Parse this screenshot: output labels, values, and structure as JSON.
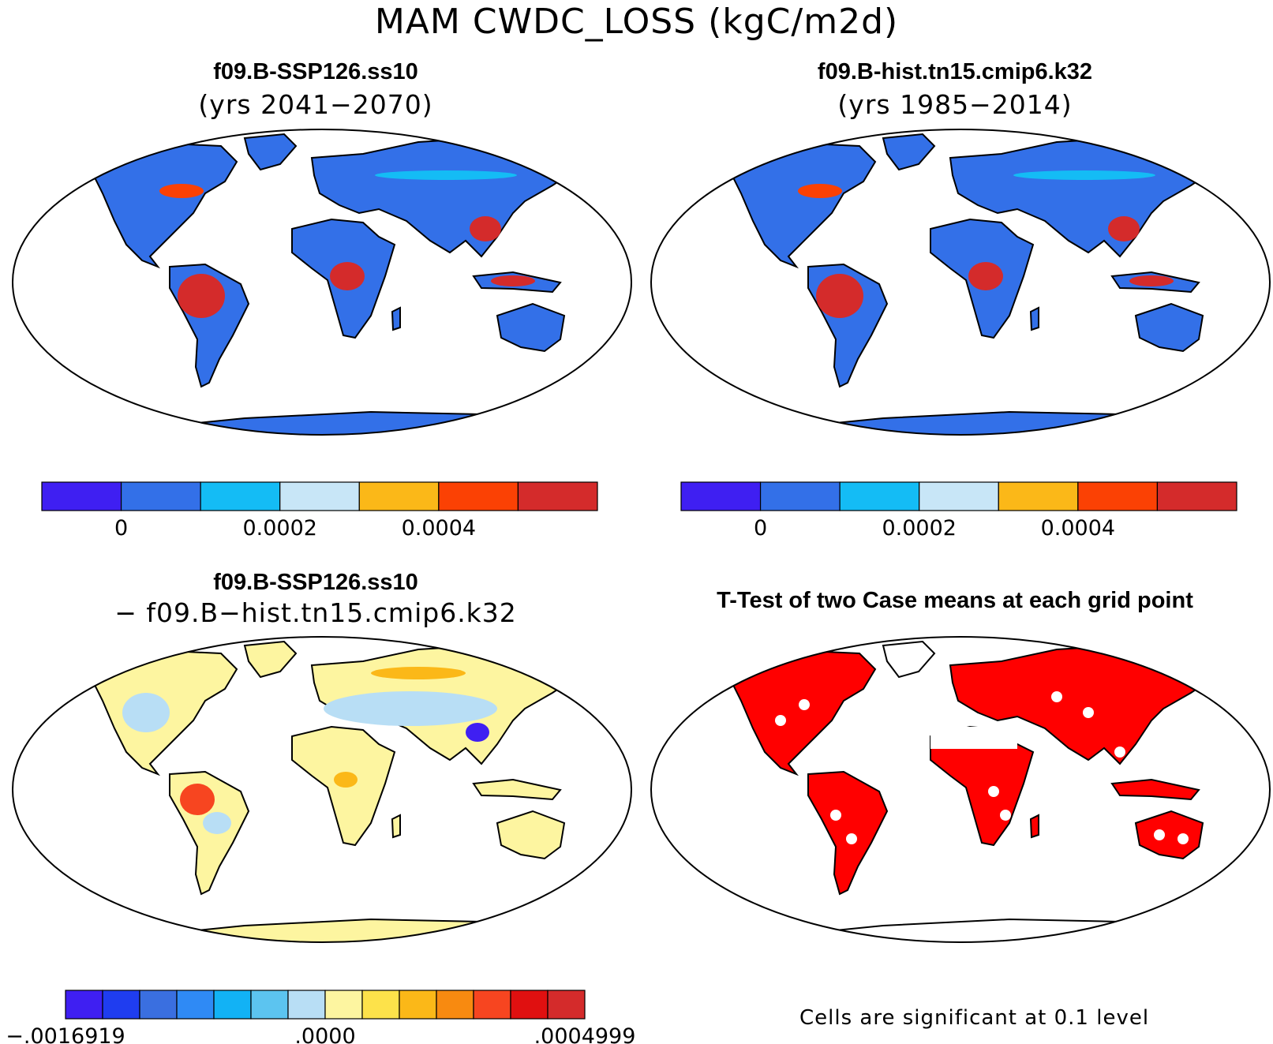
{
  "title": "MAM CWDC_LOSS (kgC/m2d)",
  "panels": [
    {
      "title": "f09.B-SSP126.ss10",
      "subtitle": "(yrs 2041−2070)",
      "colorbar": {
        "colors": [
          "#3f1ff2",
          "#3370e8",
          "#14bcf5",
          "#c8e6f7",
          "#fbb818",
          "#fb4104",
          "#d42b2b"
        ],
        "labels": [
          {
            "text": "0",
            "after_box": 1
          },
          {
            "text": "0.0002",
            "after_box": 3
          },
          {
            "text": "0.0004",
            "after_box": 5
          }
        ]
      }
    },
    {
      "title": "f09.B-hist.tn15.cmip6.k32",
      "subtitle": "(yrs 1985−2014)",
      "colorbar": {
        "colors": [
          "#3f1ff2",
          "#3370e8",
          "#14bcf5",
          "#c8e6f7",
          "#fbb818",
          "#fb4104",
          "#d42b2b"
        ],
        "labels": [
          {
            "text": "0",
            "after_box": 1
          },
          {
            "text": "0.0002",
            "after_box": 3
          },
          {
            "text": "0.0004",
            "after_box": 5
          }
        ]
      }
    },
    {
      "title": "f09.B-SSP126.ss10",
      "subtitle": "− f09.B−hist.tn15.cmip6.k32",
      "colorbar": {
        "colors": [
          "#3f1ff2",
          "#1f3df0",
          "#3a6fe0",
          "#2f8af5",
          "#12b2f5",
          "#5cc4f0",
          "#b8def5",
          "#fdf5a0",
          "#fde24a",
          "#fbb818",
          "#f88a10",
          "#f74520",
          "#e01010",
          "#d42b2b"
        ],
        "labels": [
          {
            "text": "−.0016919",
            "after_box": 0
          },
          {
            "text": ".0000",
            "after_box": 7
          },
          {
            "text": ".0004999",
            "after_box": 14
          }
        ]
      }
    },
    {
      "title": "T-Test of two Case means at each grid point",
      "note": "Cells are significant at 0.1 level",
      "sig_color": "#ff0000"
    }
  ]
}
